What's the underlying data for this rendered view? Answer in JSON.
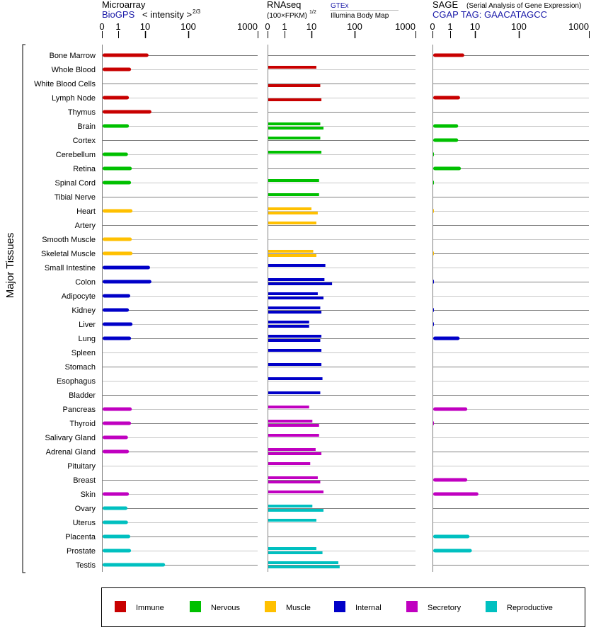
{
  "chart_data": {
    "type": "bar",
    "ylabel": "Major Tissues",
    "categories_colors": {
      "Immune": "#c80000",
      "Nervous": "#00c000",
      "Muscle": "#ffc000",
      "Internal": "#0000c8",
      "Secretory": "#c000c0",
      "Reproductive": "#00c0c0"
    },
    "legend": [
      "Immune",
      "Nervous",
      "Muscle",
      "Internal",
      "Secretory",
      "Reproductive"
    ],
    "panels": {
      "microarray": {
        "title": "Microarray",
        "source": "BioGPS",
        "scale_label": "< intensity >",
        "scale_exp": "2/3",
        "ticks": [
          "0",
          "1",
          "10",
          "100",
          "1000"
        ]
      },
      "rnaseq": {
        "title": "RNAseq",
        "scale_label": "(100×FPKM)",
        "scale_exp": "1/2",
        "series": [
          "GTEx",
          "Illumina Body Map"
        ],
        "ticks": [
          "0",
          "1",
          "10",
          "100",
          "1000"
        ]
      },
      "sage": {
        "title": "SAGE",
        "subtitle": "(Serial Analysis of Gene Expression)",
        "tag": "CGAP TAG: GAACATAGCC",
        "ticks": [
          "0",
          "1",
          "10",
          "100",
          "1000"
        ]
      }
    },
    "tissues": [
      {
        "name": "Bone Marrow",
        "cat": "Immune",
        "micro": 12,
        "gtex": null,
        "ibm": null,
        "sage": 3.7
      },
      {
        "name": "Whole Blood",
        "cat": "Immune",
        "micro": 3,
        "gtex": 13,
        "ibm": null,
        "sage": null
      },
      {
        "name": "White Blood Cells",
        "cat": "Immune",
        "micro": null,
        "gtex": null,
        "ibm": 16,
        "sage": null
      },
      {
        "name": "Lymph Node",
        "cat": "Immune",
        "micro": 2.5,
        "gtex": null,
        "ibm": 17,
        "sage": 2.5
      },
      {
        "name": "Thymus",
        "cat": "Immune",
        "micro": 14,
        "gtex": null,
        "ibm": null,
        "sage": null
      },
      {
        "name": "Brain",
        "cat": "Nervous",
        "micro": 2.5,
        "gtex": 16,
        "ibm": 19,
        "sage": 2.1
      },
      {
        "name": "Cortex",
        "cat": "Nervous",
        "micro": null,
        "gtex": 16,
        "ibm": null,
        "sage": 2.1
      },
      {
        "name": "Cerebellum",
        "cat": "Nervous",
        "micro": 2.3,
        "gtex": 17,
        "ibm": null,
        "sage": 0.05
      },
      {
        "name": "Retina",
        "cat": "Nervous",
        "micro": 3.2,
        "gtex": null,
        "ibm": null,
        "sage": 2.7
      },
      {
        "name": "Spinal Cord",
        "cat": "Nervous",
        "micro": 3,
        "gtex": 15,
        "ibm": null,
        "sage": 0.05
      },
      {
        "name": "Tibial Nerve",
        "cat": "Nervous",
        "micro": null,
        "gtex": 15,
        "ibm": null,
        "sage": null
      },
      {
        "name": "Heart",
        "cat": "Muscle",
        "micro": 3.4,
        "gtex": 10,
        "ibm": 14,
        "sage": 0.03
      },
      {
        "name": "Artery",
        "cat": "Muscle",
        "micro": null,
        "gtex": 13,
        "ibm": null,
        "sage": null
      },
      {
        "name": "Smooth Muscle",
        "cat": "Muscle",
        "micro": 3.2,
        "gtex": null,
        "ibm": null,
        "sage": null
      },
      {
        "name": "Skeletal Muscle",
        "cat": "Muscle",
        "micro": 3.4,
        "gtex": 11,
        "ibm": 13,
        "sage": 0.03
      },
      {
        "name": "Small Intestine",
        "cat": "Internal",
        "micro": 13,
        "gtex": 21,
        "ibm": null,
        "sage": null
      },
      {
        "name": "Colon",
        "cat": "Internal",
        "micro": 14,
        "gtex": 20,
        "ibm": 30,
        "sage": 0.05
      },
      {
        "name": "Adipocyte",
        "cat": "Internal",
        "micro": 2.8,
        "gtex": 14,
        "ibm": 19,
        "sage": null
      },
      {
        "name": "Kidney",
        "cat": "Internal",
        "micro": 2.5,
        "gtex": 16,
        "ibm": 17,
        "sage": 0.05
      },
      {
        "name": "Liver",
        "cat": "Internal",
        "micro": 3.4,
        "gtex": 8.2,
        "ibm": 8.2,
        "sage": 0.05
      },
      {
        "name": "Lung",
        "cat": "Internal",
        "micro": 3,
        "gtex": 17,
        "ibm": 16,
        "sage": 2.4
      },
      {
        "name": "Spleen",
        "cat": "Internal",
        "micro": null,
        "gtex": 17,
        "ibm": null,
        "sage": null
      },
      {
        "name": "Stomach",
        "cat": "Internal",
        "micro": null,
        "gtex": 17,
        "ibm": null,
        "sage": null
      },
      {
        "name": "Esophagus",
        "cat": "Internal",
        "micro": null,
        "gtex": 18,
        "ibm": null,
        "sage": null
      },
      {
        "name": "Bladder",
        "cat": "Internal",
        "micro": null,
        "gtex": 16,
        "ibm": null,
        "sage": null
      },
      {
        "name": "Pancreas",
        "cat": "Secretory",
        "micro": 3.2,
        "gtex": 8.2,
        "ibm": null,
        "sage": 4.9
      },
      {
        "name": "Thyroid",
        "cat": "Secretory",
        "micro": 3,
        "gtex": 10.5,
        "ibm": 15,
        "sage": 0.05
      },
      {
        "name": "Salivary Gland",
        "cat": "Secretory",
        "micro": 2.3,
        "gtex": 15,
        "ibm": null,
        "sage": null
      },
      {
        "name": "Adrenal Gland",
        "cat": "Secretory",
        "micro": 2.5,
        "gtex": 12.5,
        "ibm": 17,
        "sage": null
      },
      {
        "name": "Pituitary",
        "cat": "Secretory",
        "micro": null,
        "gtex": 9,
        "ibm": null,
        "sage": null
      },
      {
        "name": "Breast",
        "cat": "Secretory",
        "micro": null,
        "gtex": 14,
        "ibm": 16,
        "sage": 4.9
      },
      {
        "name": "Skin",
        "cat": "Secretory",
        "micro": 2.5,
        "gtex": 19,
        "ibm": null,
        "sage": 12
      },
      {
        "name": "Ovary",
        "cat": "Reproductive",
        "micro": 2.2,
        "gtex": 10.5,
        "ibm": 19,
        "sage": null
      },
      {
        "name": "Uterus",
        "cat": "Reproductive",
        "micro": 2.3,
        "gtex": 13,
        "ibm": null,
        "sage": null
      },
      {
        "name": "Placenta",
        "cat": "Reproductive",
        "micro": 2.8,
        "gtex": null,
        "ibm": null,
        "sage": 6
      },
      {
        "name": "Prostate",
        "cat": "Reproductive",
        "micro": 3,
        "gtex": 13,
        "ibm": 18,
        "sage": 7.5
      },
      {
        "name": "Testis",
        "cat": "Reproductive",
        "micro": 29,
        "gtex": 42,
        "ibm": 45,
        "sage": null
      }
    ]
  }
}
